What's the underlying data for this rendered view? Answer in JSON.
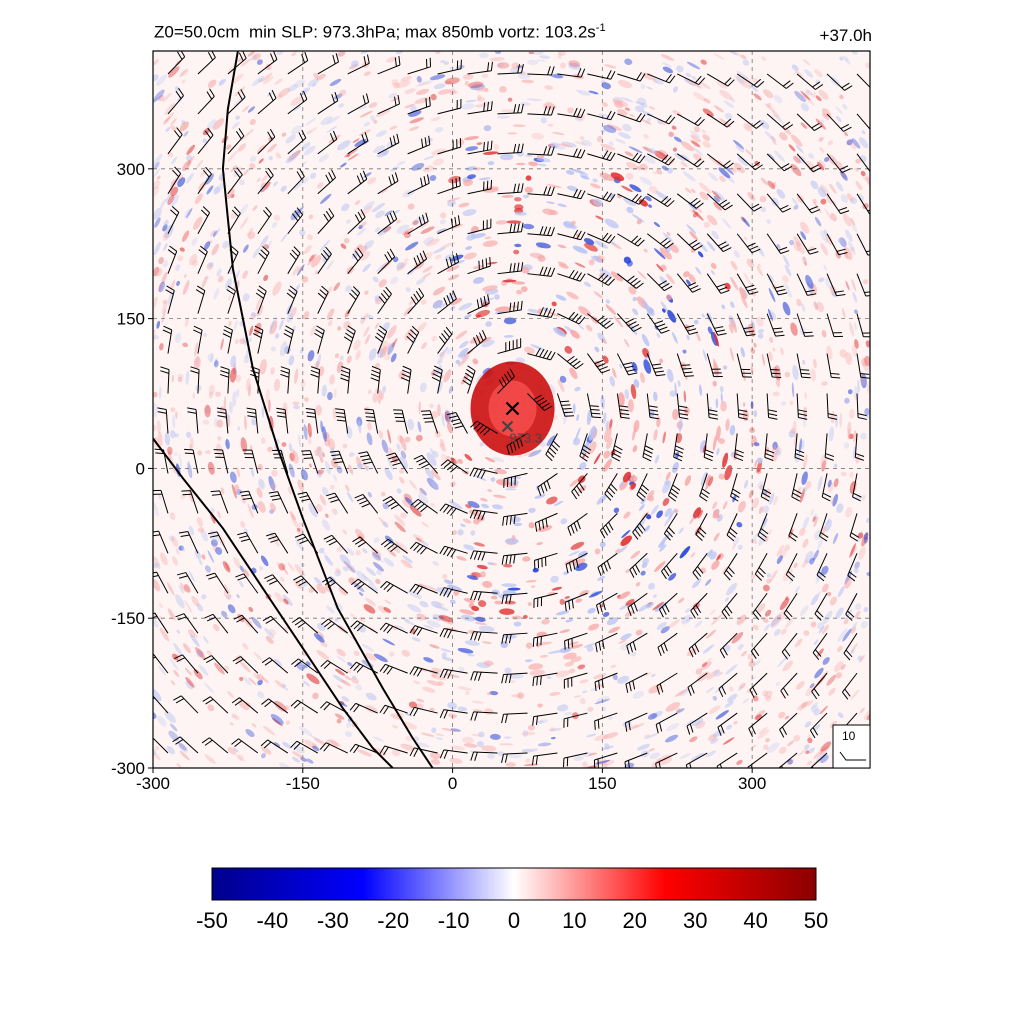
{
  "chart_data": {
    "type": "heatmap",
    "title_left": {
      "z0_label": "Z0=50.0cm",
      "min_slp_label": "min SLP: 973.3hPa;",
      "vort_label": "max 850mb vortz: 103.2s",
      "vort_unit_exp": "-1"
    },
    "title_right": "+37.0h",
    "x_ticks": [
      -300,
      -150,
      0,
      150,
      300
    ],
    "y_ticks": [
      -300,
      -150,
      0,
      150,
      300
    ],
    "xlim": [
      -300,
      418
    ],
    "ylim": [
      -300,
      418
    ],
    "grid": "dashed",
    "storm_center": {
      "x": 60,
      "y": 60,
      "marker": "x"
    },
    "min_slp_location": {
      "x": 55,
      "y": 42,
      "label": "973.3"
    },
    "wind_barb_reference": {
      "label": "10"
    },
    "colorbar": {
      "min": -50,
      "max": 50,
      "ticks": [
        "-50",
        "-40",
        "-30",
        "-20",
        "-10",
        "0",
        "10",
        "20",
        "30",
        "40",
        "50"
      ],
      "colors": {
        "low": "#00008b",
        "mid_low": "#0000ff",
        "center": "#ffffff",
        "mid_high": "#ff0000",
        "high": "#8b0000"
      }
    },
    "coastlines": [
      [
        [
          -215,
          418
        ],
        [
          -225,
          360
        ],
        [
          -230,
          300
        ],
        [
          -220,
          200
        ],
        [
          -200,
          100
        ],
        [
          -175,
          20
        ],
        [
          -150,
          -50
        ],
        [
          -115,
          -140
        ],
        [
          -70,
          -220
        ],
        [
          -40,
          -270
        ],
        [
          -20,
          -300
        ]
      ],
      [
        [
          -300,
          30
        ],
        [
          -270,
          -10
        ],
        [
          -230,
          -60
        ],
        [
          -190,
          -120
        ],
        [
          -150,
          -180
        ],
        [
          -110,
          -240
        ],
        [
          -80,
          -280
        ],
        [
          -60,
          -300
        ]
      ]
    ]
  }
}
